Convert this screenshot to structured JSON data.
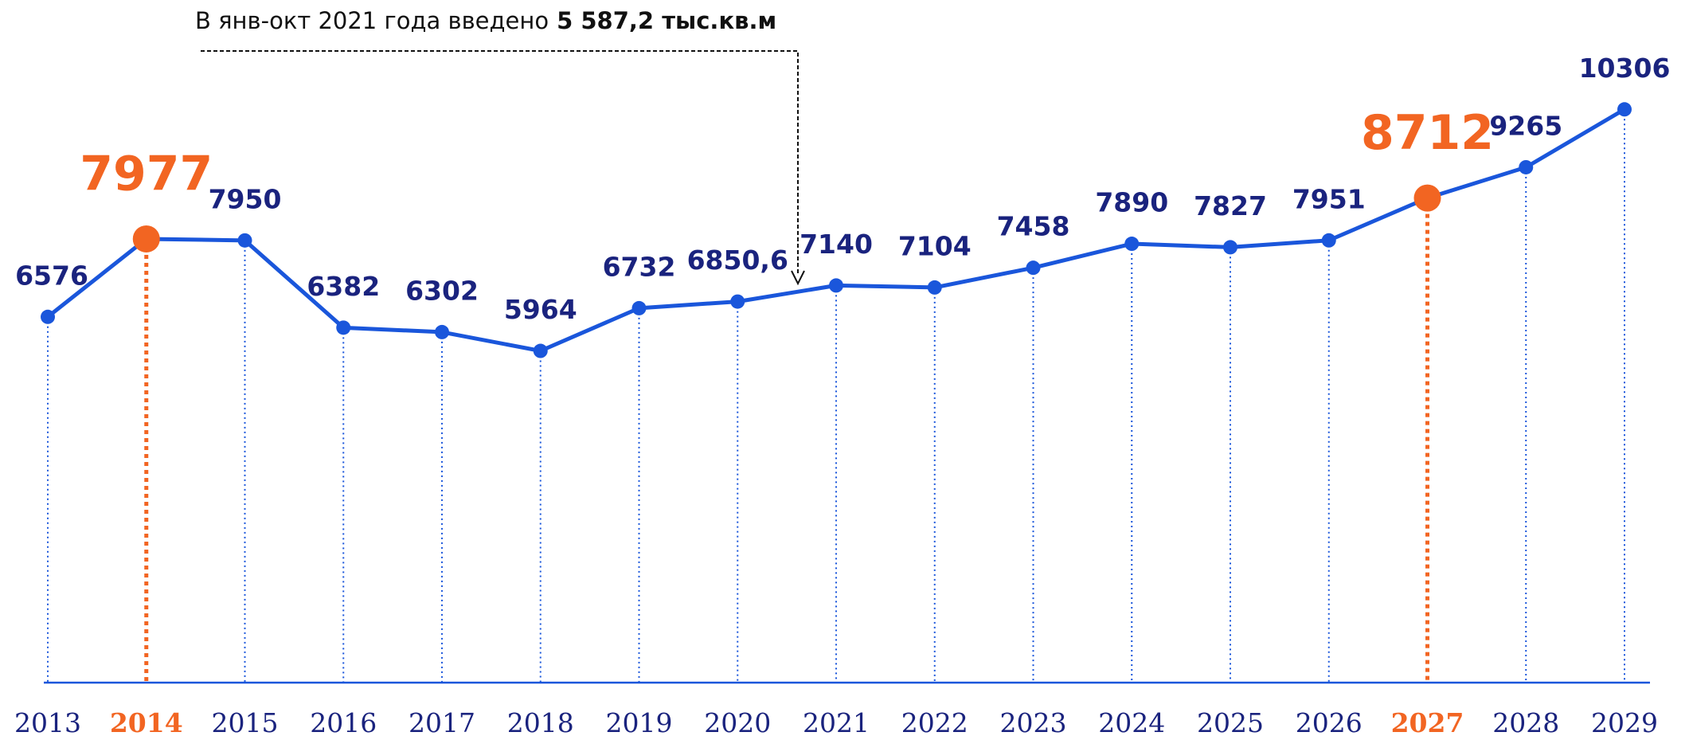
{
  "chart_data": {
    "type": "line",
    "annotation": {
      "text": "В янв-окт 2021 года введено",
      "bold": "5 587,2 тыс.кв.м"
    },
    "categories": [
      "2013",
      "2014",
      "2015",
      "2016",
      "2017",
      "2018",
      "2019",
      "2020",
      "2021",
      "2022",
      "2023",
      "2024",
      "2025",
      "2026",
      "2027",
      "2028",
      "2029"
    ],
    "values": [
      6576,
      7977,
      7950,
      6382,
      6302,
      5964,
      6732,
      6850.6,
      7140,
      7104,
      7458,
      7890,
      7827,
      7951,
      8712,
      9265,
      10306
    ],
    "value_labels": [
      "6576",
      "7977",
      "7950",
      "6382",
      "6302",
      "5964",
      "6732",
      "6850,6",
      "7140",
      "7104",
      "7458",
      "7890",
      "7827",
      "7951",
      "8712",
      "9265",
      "10306"
    ],
    "color": "#1a56db",
    "point_colors": [
      "#1a56db",
      "#f26522",
      "#1a56db",
      "#1a56db",
      "#1a56db",
      "#1a56db",
      "#1a56db",
      "#1a56db",
      "#1a56db",
      "#1a56db",
      "#1a56db",
      "#1a56db",
      "#1a56db",
      "#1a56db",
      "#f26522",
      "#1a56db",
      "#1a56db"
    ],
    "ylim": [
      0,
      12000
    ]
  }
}
